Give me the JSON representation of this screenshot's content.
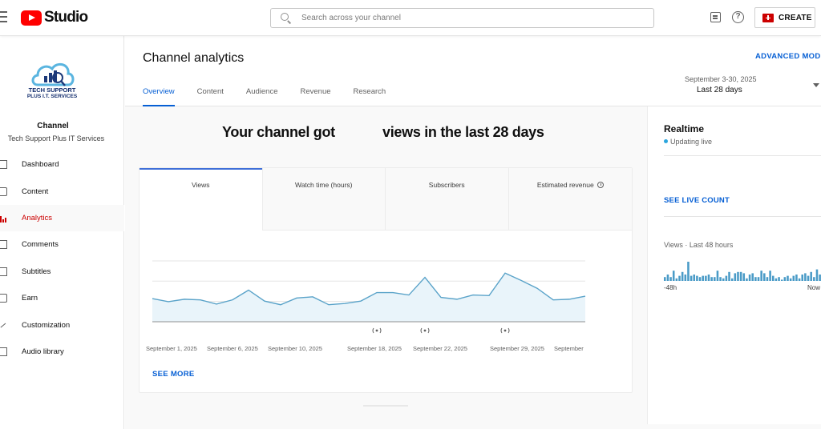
{
  "app": {
    "logo_text": "Studio"
  },
  "search": {
    "placeholder": "Search across your channel"
  },
  "header": {
    "create_label": "CREATE"
  },
  "channel": {
    "logo_line1": "TECH SUPPORT",
    "logo_line2": "PLUS I.T. SERVICES",
    "label": "Channel",
    "name": "Tech Support Plus IT Services"
  },
  "sidebar": {
    "items": [
      {
        "label": "Dashboard",
        "icon": "dashboard-icon"
      },
      {
        "label": "Content",
        "icon": "content-icon"
      },
      {
        "label": "Analytics",
        "icon": "analytics-icon"
      },
      {
        "label": "Comments",
        "icon": "comments-icon"
      },
      {
        "label": "Subtitles",
        "icon": "subtitles-icon"
      },
      {
        "label": "Earn",
        "icon": "earn-icon"
      },
      {
        "label": "Customization",
        "icon": "customization-icon"
      },
      {
        "label": "Audio library",
        "icon": "audio-library-icon"
      }
    ],
    "active_index": 2
  },
  "main": {
    "title": "Channel analytics",
    "advanced_mode": "ADVANCED MODE",
    "tabs": [
      "Overview",
      "Content",
      "Audience",
      "Revenue",
      "Research"
    ],
    "active_tab": 0,
    "date_range": {
      "sub": "September 3-30, 2025",
      "main": "Last 28 days"
    },
    "headline_a": "Your channel got",
    "headline_b": "views in the last 28 days",
    "metric_tabs": [
      "Views",
      "Watch time (hours)",
      "Subscribers",
      "Estimated revenue"
    ],
    "see_more": "SEE MORE"
  },
  "chart_data": {
    "type": "area",
    "x_labels": [
      "September 1, 2025",
      "September 6, 2025",
      "September 10, 2025",
      "September 18, 2025",
      "September 22, 2025",
      "September 29, 2025",
      "September"
    ],
    "values": [
      38,
      33,
      37,
      36,
      29,
      36,
      52,
      34,
      28,
      39,
      41,
      28,
      30,
      34,
      48,
      48,
      44,
      73,
      40,
      37,
      44,
      43,
      80,
      68,
      55,
      36,
      37,
      42
    ],
    "ylim": [
      0,
      100
    ],
    "live_markers": 3,
    "color": "#5aa3c9"
  },
  "realtime": {
    "title": "Realtime",
    "status": "Updating live",
    "see_live": "SEE LIVE COUNT",
    "views_label": "Views · Last 48 hours",
    "left_label": "-48h",
    "right_label": "Now",
    "bars": [
      3,
      5,
      3,
      8,
      2,
      4,
      7,
      5,
      15,
      4,
      5,
      4,
      3,
      4,
      4,
      5,
      3,
      3,
      8,
      3,
      2,
      4,
      7,
      2,
      6,
      7,
      7,
      6,
      2,
      5,
      6,
      3,
      3,
      8,
      6,
      3,
      8,
      4,
      2,
      3,
      1,
      3,
      4,
      2,
      4,
      5,
      2,
      5,
      6,
      4,
      7,
      3,
      9,
      5
    ]
  }
}
